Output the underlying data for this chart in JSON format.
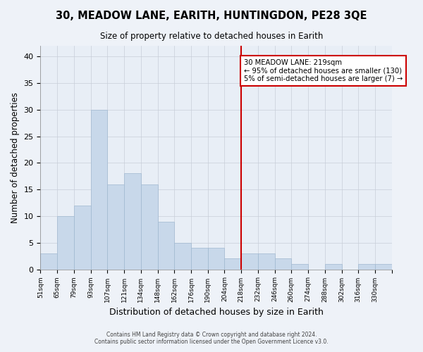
{
  "title": "30, MEADOW LANE, EARITH, HUNTINGDON, PE28 3QE",
  "subtitle": "Size of property relative to detached houses in Earith",
  "xlabel": "Distribution of detached houses by size in Earith",
  "ylabel": "Number of detached properties",
  "bin_labels": [
    "51sqm",
    "65sqm",
    "79sqm",
    "93sqm",
    "107sqm",
    "121sqm",
    "134sqm",
    "148sqm",
    "162sqm",
    "176sqm",
    "190sqm",
    "204sqm",
    "218sqm",
    "232sqm",
    "246sqm",
    "260sqm",
    "274sqm",
    "288sqm",
    "302sqm",
    "316sqm",
    "330sqm"
  ],
  "bar_values": [
    3,
    10,
    12,
    30,
    16,
    18,
    16,
    9,
    5,
    4,
    4,
    2,
    3,
    3,
    2,
    1,
    0,
    1,
    0,
    1,
    1
  ],
  "bar_color": "#c8d8ea",
  "bar_edge_color": "#a0b8d0",
  "vline_color": "#cc0000",
  "vline_x_index": 12,
  "annotation_title": "30 MEADOW LANE: 219sqm",
  "annotation_line1": "← 95% of detached houses are smaller (130)",
  "annotation_line2": "5% of semi-detached houses are larger (7) →",
  "annotation_box_color": "#cc0000",
  "ylim": [
    0,
    42
  ],
  "yticks": [
    0,
    5,
    10,
    15,
    20,
    25,
    30,
    35,
    40
  ],
  "footer_line1": "Contains HM Land Registry data © Crown copyright and database right 2024.",
  "footer_line2": "Contains public sector information licensed under the Open Government Licence v3.0.",
  "bg_color": "#eef2f8",
  "plot_bg_color": "#e8eef6",
  "grid_color": "#c8cdd8"
}
